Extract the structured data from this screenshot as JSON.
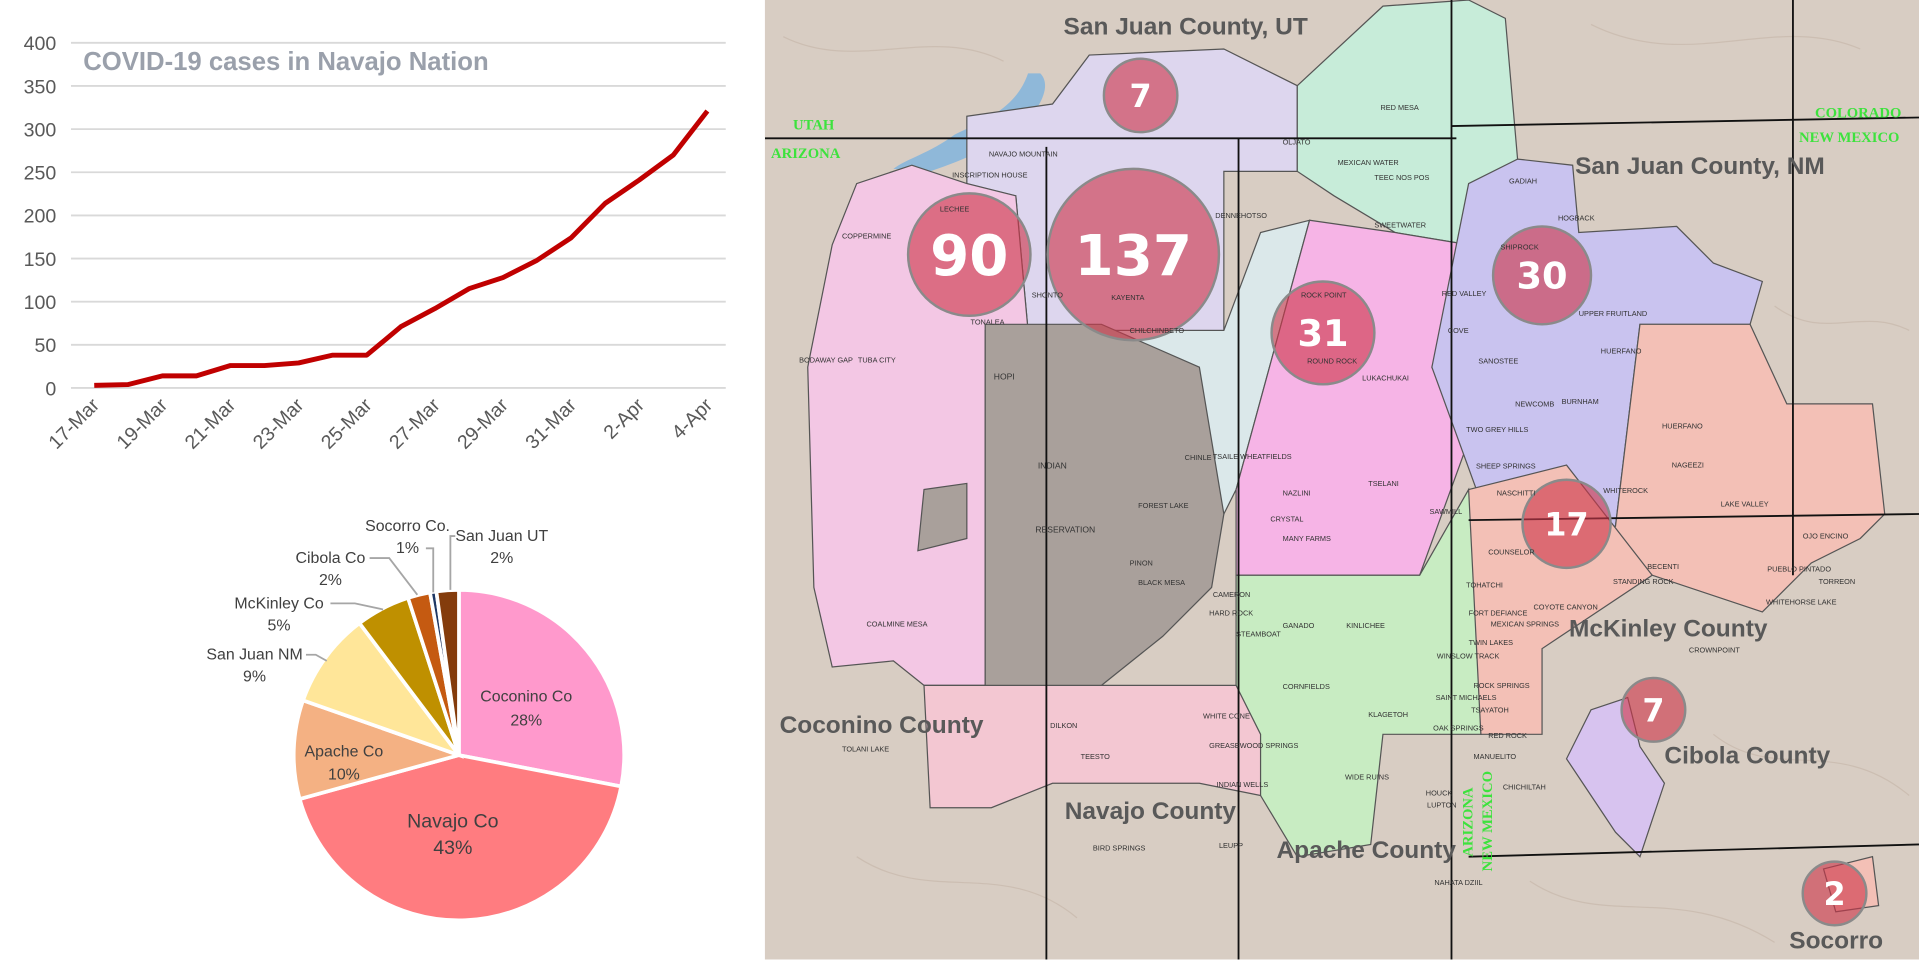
{
  "chart_data": [
    {
      "type": "line",
      "title": "COVID-19 cases in Navajo Nation",
      "xlabel": "",
      "ylabel": "",
      "ylim": [
        0,
        400
      ],
      "yticks": [
        0,
        50,
        100,
        150,
        200,
        250,
        300,
        350,
        400
      ],
      "grid": true,
      "line_color": "#c00000",
      "x": [
        "17-Mar",
        "18-Mar",
        "19-Mar",
        "20-Mar",
        "21-Mar",
        "22-Mar",
        "23-Mar",
        "24-Mar",
        "25-Mar",
        "26-Mar",
        "27-Mar",
        "28-Mar",
        "29-Mar",
        "30-Mar",
        "31-Mar",
        "1-Apr",
        "2-Apr",
        "3-Apr",
        "4-Apr"
      ],
      "xtick_labels": [
        "17-Mar",
        "19-Mar",
        "21-Mar",
        "23-Mar",
        "25-Mar",
        "27-Mar",
        "29-Mar",
        "31-Mar",
        "2-Apr",
        "4-Apr"
      ],
      "values": [
        3,
        4,
        14,
        14,
        26,
        26,
        29,
        38,
        38,
        71,
        92,
        115,
        128,
        148,
        174,
        214,
        241,
        270,
        321
      ]
    },
    {
      "type": "pie",
      "slices": [
        {
          "label": "Coconino Co",
          "pct": "28%",
          "value": 90,
          "color": "#ff99cc"
        },
        {
          "label": "Navajo Co",
          "pct": "43%",
          "value": 137,
          "color": "#ff7c80"
        },
        {
          "label": "Apache Co",
          "pct": "10%",
          "value": 31,
          "color": "#f4b183"
        },
        {
          "label": "San Juan NM",
          "pct": "9%",
          "value": 30,
          "color": "#ffe699"
        },
        {
          "label": "McKinley Co",
          "pct": "5%",
          "value": 17,
          "color": "#bf9000"
        },
        {
          "label": "Cibola Co",
          "pct": "2%",
          "value": 7,
          "color": "#c55a11"
        },
        {
          "label": "Socorro Co.",
          "pct": "1%",
          "value": 2,
          "color": "#1f3864"
        },
        {
          "label": "San Juan UT",
          "pct": "2%",
          "value": 7,
          "color": "#843c0c"
        }
      ]
    }
  ],
  "map": {
    "counties": {
      "san_juan_ut": "San Juan County, UT",
      "san_juan_nm": "San Juan County, NM",
      "coconino": "Coconino County",
      "navajo": "Navajo County",
      "apache": "Apache County",
      "mckinley": "McKinley County",
      "cibola": "Cibola County",
      "socorro": "Socorro"
    },
    "states": {
      "utah": "UTAH",
      "arizona": "ARIZONA",
      "colorado": "COLORADO",
      "new_mexico": "NEW MEXICO",
      "arizona_v": "ARIZONA",
      "new_mexico_v": "NEW MEXICO"
    },
    "bubbles": [
      {
        "county": "San Juan UT",
        "count": "7"
      },
      {
        "county": "Coconino",
        "count": "90"
      },
      {
        "county": "Navajo",
        "count": "137"
      },
      {
        "county": "Apache",
        "count": "31"
      },
      {
        "county": "San Juan NM",
        "count": "30"
      },
      {
        "county": "McKinley",
        "count": "17"
      },
      {
        "county": "Cibola",
        "count": "7"
      },
      {
        "county": "Socorro",
        "count": "2"
      }
    ],
    "reservation_labels": {
      "hopi": "HOPI",
      "indian": "INDIAN",
      "reservation": "RESERVATION"
    },
    "chapters": [
      "NAVAJO MOUNTAIN",
      "INSCRIPTION HOUSE",
      "LECHEE",
      "COPPERMINE",
      "TONALEA",
      "BODAWAY GAP",
      "TUBA CITY",
      "SHONTO",
      "KAYENTA",
      "CHILCHINBETO",
      "DENNEHOTSO",
      "OLJATO",
      "RED MESA",
      "MEXICAN WATER",
      "TEEC NOS POS",
      "SWEETWATER",
      "ROCK POINT",
      "ROUND ROCK",
      "LUKACHUKAI",
      "RED VALLEY",
      "COVE",
      "GADIAH",
      "HOGBACK",
      "SHIPROCK",
      "SANOSTEE",
      "NEWCOMB",
      "BURNHAM",
      "UPPER FRUITLAND",
      "HUERFANO",
      "TWO GREY HILLS",
      "SHEEP SPRINGS",
      "NASCHITTI",
      "HUERFANO",
      "NAGEEZI",
      "WHITEROCK",
      "LAKE VALLEY",
      "COUNSELOR",
      "TOHATCHI",
      "MEXICAN SPRINGS",
      "COYOTE CANYON",
      "STANDING ROCK",
      "BECENTI",
      "PUEBLO PINTADO",
      "OJO ENCINO",
      "TORREON",
      "WHITEHORSE LAKE",
      "CROWNPOINT",
      "TWIN LAKES",
      "ROCK SPRINGS",
      "RED ROCK",
      "CHICHILTAH",
      "STEAMBOAT",
      "GANADO",
      "KINLICHEE",
      "CORNFIELDS",
      "KLAGETOH",
      "WIDE RUINS",
      "SAINT MICHAELS",
      "OAK SPRINGS",
      "HOUCK",
      "LUPTON",
      "NAHATA DZIIL",
      "FORT DEFIANCE",
      "TSAYATOH",
      "MANUELITO",
      "INDIAN WELLS",
      "GREASEWOOD SPRINGS",
      "WHITE CONE",
      "DILKON",
      "TEESTO",
      "BIRD SPRINGS",
      "LEUPP",
      "TOLANI LAKE",
      "CAMERON",
      "COALMINE MESA",
      "HARD ROCK",
      "PINON",
      "BLACK MESA",
      "FOREST LAKE",
      "CHINLE",
      "TSAILE WHEATFIELDS",
      "NAZLINI",
      "TSELANI",
      "MANY FARMS",
      "CRYSTAL",
      "SAWMILL",
      "WINSLOW TRACK"
    ]
  }
}
